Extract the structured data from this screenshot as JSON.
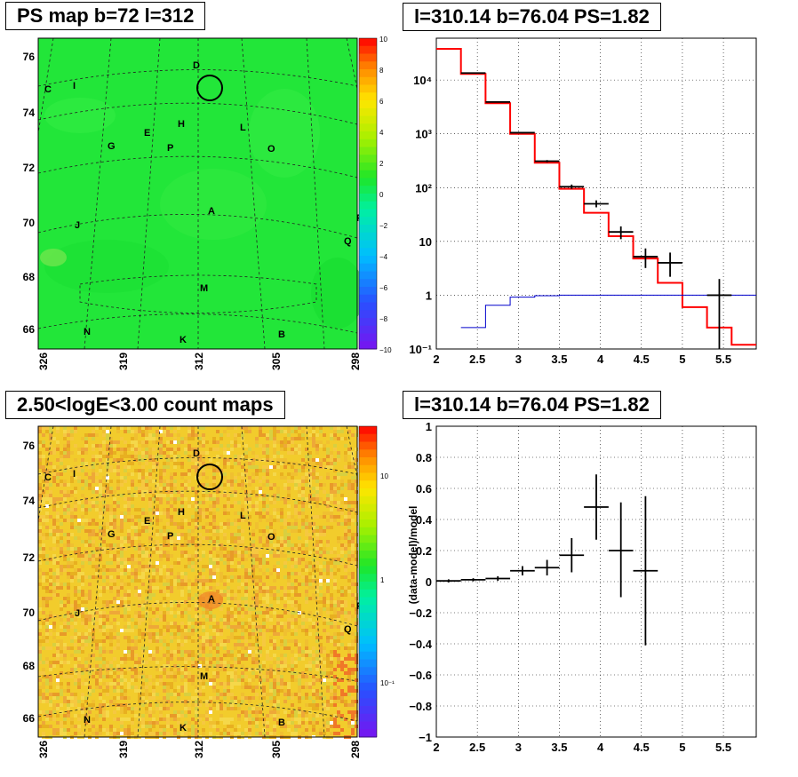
{
  "panels": {
    "ps_map": {
      "title": "PS map b=72 l=312",
      "y_ticks": [
        "76",
        "74",
        "72",
        "70",
        "68",
        "66"
      ],
      "x_ticks": [
        "326",
        "319",
        "312",
        "305",
        "298"
      ],
      "colorbar_ticks": [
        "10",
        "8",
        "6",
        "4",
        "2",
        "0",
        "−2",
        "−4",
        "−6",
        "−8",
        "−10"
      ],
      "source_labels": [
        "D",
        "C",
        "I",
        "H",
        "L",
        "E",
        "G",
        "P",
        "O",
        "A",
        "F",
        "J",
        "Q",
        "M",
        "N",
        "K",
        "B"
      ]
    },
    "count_map": {
      "title": "2.50<logE<3.00 count maps",
      "y_ticks": [
        "76",
        "74",
        "72",
        "70",
        "68",
        "66"
      ],
      "x_ticks": [
        "326",
        "319",
        "312",
        "305",
        "298"
      ],
      "colorbar_ticks": [
        "10",
        "1",
        "10⁻¹"
      ],
      "source_labels": [
        "D",
        "C",
        "I",
        "H",
        "L",
        "E",
        "G",
        "P",
        "O",
        "A",
        "F",
        "J",
        "Q",
        "M",
        "N",
        "K",
        "B"
      ]
    },
    "spectrum": {
      "title": "l=310.14 b=76.04 PS=1.82"
    },
    "residual": {
      "title": "l=310.14 b=76.04 PS=1.82",
      "ylabel": "(data-model)/model"
    }
  },
  "chart_data": [
    {
      "type": "heatmap",
      "title": "PS map b=72 l=312",
      "x_tick_labels": [
        "326",
        "319",
        "312",
        "305",
        "298"
      ],
      "y_tick_labels": [
        "76",
        "74",
        "72",
        "70",
        "68",
        "66"
      ],
      "ylim": [
        65.3,
        76.8
      ],
      "colorbar_range": [
        -10,
        10
      ],
      "colors": {
        "map": "#22e639",
        "colorbar": "rainbow"
      },
      "marker": {
        "name": "D-circle",
        "lon": 310.14,
        "lat": 74.8
      }
    },
    {
      "type": "heatmap",
      "title": "2.50<logE<3.00 count maps",
      "x_tick_labels": [
        "326",
        "319",
        "312",
        "305",
        "298"
      ],
      "y_tick_labels": [
        "76",
        "74",
        "72",
        "70",
        "68",
        "66"
      ],
      "ylim": [
        65.3,
        76.8
      ],
      "colorbar_scale": "log",
      "colorbar_range": [
        0.03,
        30
      ],
      "colors": {
        "map": "#f2cc2c",
        "colorbar": "rainbow"
      }
    },
    {
      "type": "line",
      "title": "l=310.14 b=76.04 PS=1.82",
      "xlim": [
        2,
        5.9
      ],
      "ylim": [
        0.1,
        60000
      ],
      "yscale": "log",
      "x_tick_labels": [
        "2",
        "2.5",
        "3",
        "3.5",
        "4",
        "4.5",
        "5",
        "5.5"
      ],
      "y_tick_labels": [
        "10⁻¹",
        "1",
        "10",
        "10²",
        "10³",
        "10⁴"
      ],
      "grid": true,
      "series": [
        {
          "style": "step",
          "color": "#ff0000",
          "edges": [
            2.0,
            2.3,
            2.6,
            2.9,
            3.2,
            3.5,
            3.8,
            4.1,
            4.4,
            4.7,
            5.0,
            5.3,
            5.6,
            5.9
          ],
          "values": [
            38000,
            13000,
            3700,
            1000,
            290,
            95,
            34,
            12.5,
            4.8,
            1.7,
            0.6,
            0.25,
            0.12
          ]
        },
        {
          "style": "step",
          "color": "#0000cc",
          "edges": [
            2.3,
            2.6,
            2.9,
            3.2,
            3.5,
            5.9
          ],
          "values": [
            0.25,
            0.65,
            0.92,
            0.98,
            1.0
          ]
        },
        {
          "style": "errorbar",
          "color": "#000000",
          "x": [
            2.45,
            2.75,
            3.05,
            3.35,
            3.65,
            3.95,
            4.25,
            4.55,
            4.85,
            5.45
          ],
          "xerr": [
            0.15,
            0.15,
            0.15,
            0.15,
            0.15,
            0.15,
            0.15,
            0.15,
            0.15,
            0.15
          ],
          "y": [
            13500,
            3900,
            1050,
            310,
            104,
            50,
            15,
            5.2,
            4.0,
            1.0
          ],
          "ylo": [
            13300,
            3840,
            1020,
            295,
            95,
            43,
            11,
            3.2,
            2.2,
            0.1
          ],
          "yhi": [
            13700,
            3960,
            1080,
            325,
            114,
            58,
            19,
            7.4,
            6.2,
            2.0
          ]
        }
      ]
    },
    {
      "type": "scatter",
      "title": "l=310.14 b=76.04 PS=1.82",
      "ylabel": "(data-model)/model",
      "xlim": [
        2,
        5.9
      ],
      "ylim": [
        -1,
        1
      ],
      "x_tick_labels": [
        "2",
        "2.5",
        "3",
        "3.5",
        "4",
        "4.5",
        "5",
        "5.5"
      ],
      "y_tick_labels": [
        "1",
        "0.8",
        "0.6",
        "0.4",
        "0.2",
        "0",
        "−0.2",
        "−0.4",
        "−0.6",
        "−0.8",
        "−1"
      ],
      "grid": true,
      "series": [
        {
          "style": "errorbar",
          "color": "#000000",
          "x": [
            2.15,
            2.45,
            2.75,
            3.05,
            3.35,
            3.65,
            3.95,
            4.25,
            4.55
          ],
          "xerr": [
            0.15,
            0.15,
            0.15,
            0.15,
            0.15,
            0.15,
            0.15,
            0.15,
            0.15
          ],
          "y": [
            0.005,
            0.012,
            0.02,
            0.07,
            0.09,
            0.17,
            0.48,
            0.2,
            0.07
          ],
          "ylo": [
            -0.005,
            0.002,
            0.005,
            0.04,
            0.04,
            0.06,
            0.27,
            -0.1,
            -0.41
          ],
          "yhi": [
            0.015,
            0.022,
            0.035,
            0.1,
            0.14,
            0.28,
            0.69,
            0.51,
            0.55
          ]
        }
      ]
    }
  ]
}
